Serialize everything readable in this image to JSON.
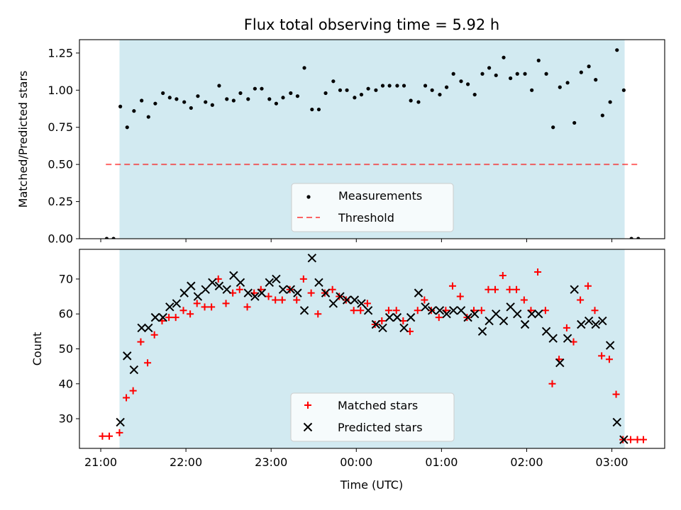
{
  "figure": {
    "title": "Flux total observing time = 5.92 h",
    "xlabel": "Time (UTC)"
  },
  "colors": {
    "shade": "#add8e6",
    "threshold": "#ff0000",
    "matched": "#ff0000",
    "predicted": "#000000",
    "measurement": "#000000"
  },
  "chart_data": [
    {
      "type": "scatter",
      "ylabel": "Matched/Predicted stars",
      "xlim": [
        20.75,
        27.62
      ],
      "ylim": [
        0.0,
        1.34
      ],
      "yticks": [
        0.0,
        0.25,
        0.5,
        0.75,
        1.0,
        1.25
      ],
      "ytick_labels": [
        "0.00",
        "0.25",
        "0.50",
        "0.75",
        "1.00",
        "1.25"
      ],
      "shaded_span": [
        21.22,
        27.15
      ],
      "threshold": {
        "name": "Threshold",
        "y": 0.5,
        "x": [
          21.06,
          27.3
        ],
        "style": "dashed"
      },
      "legend": [
        "Measurements",
        "Threshold"
      ],
      "legend_position": "lower center",
      "grid": false,
      "series": [
        {
          "name": "Measurements",
          "x": [
            21.07,
            21.15,
            21.23,
            21.31,
            21.39,
            21.48,
            21.56,
            21.64,
            21.73,
            21.81,
            21.89,
            21.98,
            22.06,
            22.14,
            22.23,
            22.31,
            22.39,
            22.48,
            22.56,
            22.64,
            22.73,
            22.81,
            22.89,
            22.98,
            23.06,
            23.14,
            23.23,
            23.31,
            23.39,
            23.48,
            23.56,
            23.64,
            23.73,
            23.81,
            23.89,
            23.98,
            24.06,
            24.14,
            24.23,
            24.31,
            24.39,
            24.48,
            24.56,
            24.64,
            24.73,
            24.81,
            24.89,
            24.98,
            25.06,
            25.14,
            25.23,
            25.31,
            25.39,
            25.48,
            25.56,
            25.64,
            25.73,
            25.81,
            25.89,
            25.98,
            26.06,
            26.14,
            26.23,
            26.31,
            26.39,
            26.48,
            26.56,
            26.64,
            26.73,
            26.81,
            26.89,
            26.98,
            27.06,
            27.14,
            27.23,
            27.31
          ],
          "y": [
            0.0,
            0.0,
            0.89,
            0.75,
            0.86,
            0.93,
            0.82,
            0.91,
            0.98,
            0.95,
            0.94,
            0.92,
            0.88,
            0.96,
            0.92,
            0.9,
            1.03,
            0.94,
            0.93,
            0.98,
            0.94,
            1.01,
            1.01,
            0.94,
            0.91,
            0.95,
            0.98,
            0.96,
            1.15,
            0.87,
            0.87,
            0.98,
            1.06,
            1.0,
            1.0,
            0.95,
            0.97,
            1.01,
            1.0,
            1.03,
            1.03,
            1.03,
            1.03,
            0.93,
            0.92,
            1.03,
            1.0,
            0.97,
            1.02,
            1.11,
            1.06,
            1.04,
            0.97,
            1.11,
            1.15,
            1.1,
            1.22,
            1.08,
            1.11,
            1.11,
            1.0,
            1.2,
            1.11,
            0.75,
            1.02,
            1.05,
            0.78,
            1.12,
            1.16,
            1.07,
            0.83,
            0.92,
            1.27,
            1.0,
            0.0,
            0.0
          ]
        }
      ]
    },
    {
      "type": "scatter",
      "ylabel": "Count",
      "xlim": [
        20.75,
        27.62
      ],
      "ylim": [
        21.5,
        78.5
      ],
      "yticks": [
        30,
        40,
        50,
        60,
        70
      ],
      "ytick_labels": [
        "30",
        "40",
        "50",
        "60",
        "70"
      ],
      "xticks": [
        21,
        22,
        23,
        24,
        25,
        26,
        27
      ],
      "xtick_labels": [
        "21:00",
        "22:00",
        "23:00",
        "00:00",
        "01:00",
        "02:00",
        "03:00"
      ],
      "shaded_span": [
        21.22,
        27.15
      ],
      "legend": [
        "Matched stars",
        "Predicted stars"
      ],
      "legend_position": "lower center",
      "grid": false,
      "series": [
        {
          "name": "Matched stars",
          "marker": "plus",
          "x": [
            21.02,
            21.1,
            21.22,
            21.3,
            21.38,
            21.47,
            21.55,
            21.63,
            21.72,
            21.8,
            21.88,
            21.97,
            22.05,
            22.13,
            22.22,
            22.3,
            22.38,
            22.47,
            22.55,
            22.63,
            22.72,
            22.8,
            22.88,
            22.97,
            23.05,
            23.13,
            23.22,
            23.3,
            23.38,
            23.47,
            23.55,
            23.63,
            23.72,
            23.8,
            23.88,
            23.97,
            24.05,
            24.13,
            24.22,
            24.3,
            24.38,
            24.47,
            24.55,
            24.63,
            24.72,
            24.8,
            24.88,
            24.97,
            25.05,
            25.13,
            25.22,
            25.3,
            25.38,
            25.47,
            25.55,
            25.63,
            25.72,
            25.8,
            25.88,
            25.97,
            26.05,
            26.13,
            26.22,
            26.3,
            26.38,
            26.47,
            26.55,
            26.63,
            26.72,
            26.8,
            26.88,
            26.97,
            27.05,
            27.13,
            27.22,
            27.3,
            27.37
          ],
          "y": [
            25,
            25,
            26,
            36,
            38,
            52,
            46,
            54,
            58,
            59,
            59,
            61,
            60,
            63,
            62,
            62,
            70,
            63,
            66,
            67,
            62,
            66,
            67,
            65,
            64,
            64,
            67,
            64,
            70,
            66,
            60,
            66,
            67,
            65,
            64,
            61,
            61,
            63,
            57,
            58,
            61,
            61,
            58,
            55,
            61,
            64,
            61,
            59,
            61,
            68,
            65,
            59,
            61,
            61,
            67,
            67,
            71,
            67,
            67,
            64,
            61,
            72,
            61,
            40,
            47,
            56,
            52,
            64,
            68,
            61,
            48,
            47,
            37,
            24,
            24,
            24,
            24
          ]
        },
        {
          "name": "Predicted stars",
          "marker": "x",
          "x": [
            21.23,
            21.31,
            21.39,
            21.48,
            21.56,
            21.64,
            21.73,
            21.81,
            21.89,
            21.98,
            22.06,
            22.14,
            22.23,
            22.31,
            22.39,
            22.48,
            22.56,
            22.64,
            22.73,
            22.81,
            22.89,
            22.98,
            23.06,
            23.14,
            23.23,
            23.31,
            23.39,
            23.48,
            23.56,
            23.64,
            23.73,
            23.81,
            23.89,
            23.98,
            24.06,
            24.14,
            24.23,
            24.31,
            24.39,
            24.48,
            24.56,
            24.64,
            24.73,
            24.81,
            24.89,
            24.98,
            25.06,
            25.14,
            25.23,
            25.31,
            25.39,
            25.48,
            25.56,
            25.64,
            25.73,
            25.81,
            25.89,
            25.98,
            26.06,
            26.14,
            26.23,
            26.31,
            26.39,
            26.48,
            26.56,
            26.64,
            26.73,
            26.81,
            26.89,
            26.98,
            27.06,
            27.14
          ],
          "y": [
            29,
            48,
            44,
            56,
            56,
            59,
            59,
            62,
            63,
            66,
            68,
            65,
            67,
            69,
            68,
            67,
            71,
            69,
            66,
            65,
            66,
            69,
            70,
            67,
            67,
            66,
            61,
            76,
            69,
            66,
            63,
            65,
            64,
            64,
            63,
            61,
            57,
            56,
            59,
            59,
            56,
            59,
            66,
            62,
            61,
            61,
            60,
            61,
            61,
            59,
            60,
            55,
            58,
            60,
            58,
            62,
            60,
            57,
            60,
            60,
            55,
            53,
            46,
            53,
            67,
            57,
            58,
            57,
            58,
            51,
            29,
            24
          ]
        }
      ]
    }
  ]
}
